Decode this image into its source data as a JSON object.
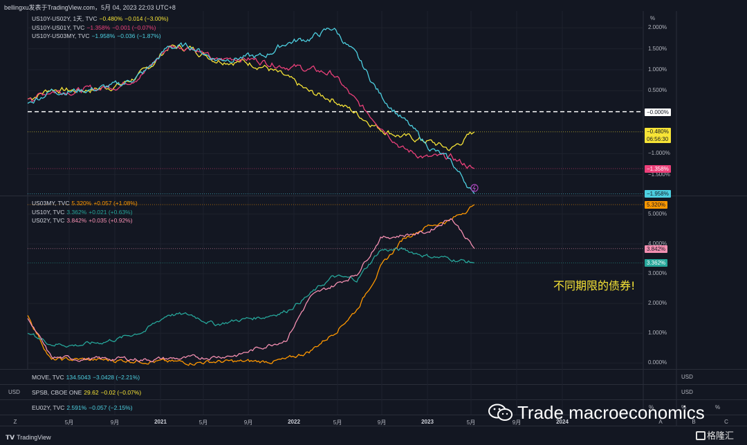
{
  "header": {
    "credit": "bellingxu发表于TradingView.com，5月 04, 2023 22:03 UTC+8"
  },
  "pane1": {
    "legend": [
      {
        "name": "US10Y-US02Y, 1天, TVC",
        "value": "−0.480%",
        "change": "−0.014 (−3.00%)",
        "color": "#f7e436"
      },
      {
        "name": "US10Y-US01Y, TVC",
        "value": "−1.358%",
        "change": "−0.001 (−0.07%)",
        "color": "#ec407a"
      },
      {
        "name": "US10Y-US03MY, TVC",
        "value": "−1.958%",
        "change": "−0.036 (−1.87%)",
        "color": "#4dd0e1"
      }
    ],
    "unit": "%",
    "ticks": [
      "2.000%",
      "1.500%",
      "1.000%",
      "0.500%",
      "−1.000%",
      "−1.500%"
    ],
    "zero_label": "−0.000%",
    "price_labels": {
      "yellow": "−0.480%",
      "yellow_countdown": "06:56:30",
      "pink": "−1.358%",
      "cyan": "−1.958%"
    }
  },
  "pane2": {
    "legend": [
      {
        "name": "US03MY, TVC",
        "value": "5.320%",
        "change": "+0.057 (+1.08%)",
        "color": "#ff9800"
      },
      {
        "name": "US10Y, TVC",
        "value": "3.362%",
        "change": "+0.021 (+0.63%)",
        "color": "#26a69a"
      },
      {
        "name": "US02Y, TVC",
        "value": "3.842%",
        "change": "+0.035 (+0.92%)",
        "color": "#f48fb1"
      }
    ],
    "ticks": [
      "5.000%",
      "4.000%",
      "3.000%",
      "2.000%",
      "1.000%",
      "0.000%"
    ],
    "price_labels": {
      "orange": "5.320%",
      "pink": "3.842%",
      "green": "3.362%"
    },
    "annotation": "不同期限的债券!"
  },
  "bottom_rows": [
    {
      "name": "MOVE, TVC",
      "value": "134.5043",
      "change": "−3.0428 (−2.21%)",
      "color": "#4dd0e1",
      "unit": "USD"
    },
    {
      "name": "SPSB, CBOE ONE",
      "value": "29.62",
      "change": "−0.02 (−0.07%)",
      "color": "#f7e436",
      "unit": "USD",
      "left_unit": "USD"
    },
    {
      "name": "EU02Y, TVC",
      "value": "2.591%",
      "change": "−0.057 (−2.15%)",
      "color": "#4dd0e1",
      "unit": "%"
    }
  ],
  "x_axis": {
    "ticks": [
      {
        "label": "5月",
        "bold": false
      },
      {
        "label": "9月",
        "bold": false
      },
      {
        "label": "2021",
        "bold": true
      },
      {
        "label": "5月",
        "bold": false
      },
      {
        "label": "9月",
        "bold": false
      },
      {
        "label": "2022",
        "bold": true
      },
      {
        "label": "5月",
        "bold": false
      },
      {
        "label": "9月",
        "bold": false
      },
      {
        "label": "2023",
        "bold": true
      },
      {
        "label": "5月",
        "bold": false
      },
      {
        "label": "9月",
        "bold": false
      },
      {
        "label": "2024",
        "bold": true
      }
    ],
    "scale_buttons": [
      "A",
      "B",
      "C"
    ]
  },
  "watermark": {
    "text": "Trade macroeconomics",
    "brand": "格隆汇"
  },
  "footer": {
    "logo": "TradingView"
  },
  "chart_data": [
    {
      "type": "line",
      "title": "",
      "ylabel": "%",
      "ylim": [
        -2.0,
        2.4
      ],
      "x": [
        "2020-03",
        "2020-05",
        "2020-07",
        "2020-09",
        "2020-11",
        "2021-01",
        "2021-03",
        "2021-05",
        "2021-07",
        "2021-09",
        "2021-11",
        "2022-01",
        "2022-03",
        "2022-05",
        "2022-07",
        "2022-09",
        "2022-11",
        "2023-01",
        "2023-03",
        "2023-05"
      ],
      "series": [
        {
          "name": "US10Y-US02Y, 1天, TVC",
          "color": "#f7e436",
          "values": [
            0.3,
            0.55,
            0.5,
            0.55,
            0.65,
            0.95,
            1.55,
            1.5,
            1.25,
            1.2,
            1.1,
            0.8,
            0.45,
            0.3,
            -0.05,
            -0.4,
            -0.6,
            -0.7,
            -0.9,
            -0.48
          ]
        },
        {
          "name": "US10Y-US01Y, TVC",
          "color": "#ec407a",
          "values": [
            0.3,
            0.5,
            0.5,
            0.55,
            0.65,
            0.95,
            1.55,
            1.55,
            1.2,
            1.3,
            1.2,
            1.1,
            1.0,
            0.9,
            0.2,
            -0.3,
            -0.9,
            -1.1,
            -1.1,
            -1.358
          ]
        },
        {
          "name": "US10Y-US03MY, TVC",
          "color": "#4dd0e1",
          "values": [
            0.2,
            0.5,
            0.5,
            0.55,
            0.65,
            0.95,
            1.55,
            1.55,
            1.25,
            1.3,
            1.3,
            1.65,
            1.75,
            2.0,
            1.3,
            0.4,
            -0.2,
            -0.8,
            -1.2,
            -1.958
          ]
        }
      ]
    },
    {
      "type": "line",
      "title": "",
      "ylabel": "%",
      "ylim": [
        -0.2,
        5.6
      ],
      "x": [
        "2020-03",
        "2020-05",
        "2020-07",
        "2020-09",
        "2020-11",
        "2021-01",
        "2021-03",
        "2021-05",
        "2021-07",
        "2021-09",
        "2021-11",
        "2022-01",
        "2022-03",
        "2022-05",
        "2022-07",
        "2022-09",
        "2022-11",
        "2023-01",
        "2023-03",
        "2023-05"
      ],
      "series": [
        {
          "name": "US03MY, TVC",
          "color": "#ff9800",
          "values": [
            1.6,
            0.1,
            0.12,
            0.1,
            0.09,
            0.08,
            0.03,
            0.02,
            0.05,
            0.04,
            0.05,
            0.1,
            0.4,
            1.0,
            1.8,
            3.2,
            4.2,
            4.6,
            4.8,
            5.32
          ]
        },
        {
          "name": "US10Y, TVC",
          "color": "#26a69a",
          "values": [
            1.0,
            0.65,
            0.6,
            0.68,
            0.85,
            1.1,
            1.65,
            1.6,
            1.3,
            1.45,
            1.55,
            1.75,
            2.3,
            2.9,
            2.8,
            3.8,
            3.8,
            3.6,
            3.5,
            3.362
          ]
        },
        {
          "name": "US02Y, TVC",
          "color": "#f48fb1",
          "values": [
            1.5,
            0.18,
            0.15,
            0.13,
            0.15,
            0.12,
            0.15,
            0.16,
            0.22,
            0.28,
            0.55,
            0.8,
            2.2,
            2.6,
            3.0,
            4.2,
            4.3,
            4.4,
            4.9,
            3.842
          ]
        }
      ]
    }
  ]
}
